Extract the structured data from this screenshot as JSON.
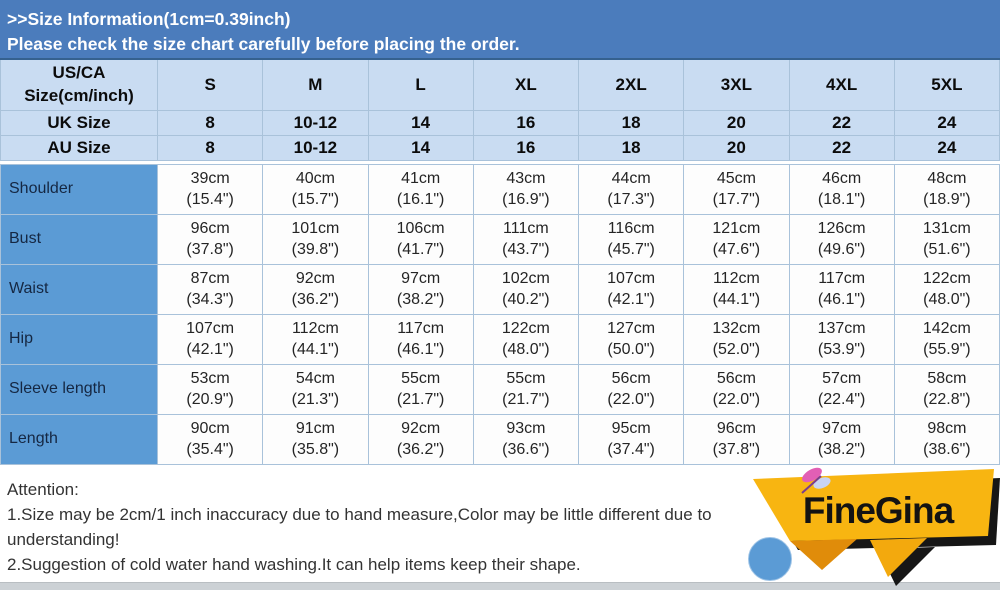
{
  "colors": {
    "band_blue": "#4b7cbc",
    "header_light_blue": "#c9dcf2",
    "label_blue": "#5b9bd5",
    "table_border": "#a9c2da",
    "ribbon_yellow": "#f8b511",
    "ribbon_orange": "#e08c0a",
    "circle_blue": "#5b9bd5"
  },
  "top_banner": {
    "line1": ">>Size Information(1cm=0.39inch)",
    "line2": "Please check the size chart carefully before placing the order."
  },
  "table": {
    "corner_label_lines": [
      "US/CA",
      "Size(cm/inch)"
    ],
    "size_columns": [
      "S",
      "M",
      "L",
      "XL",
      "2XL",
      "3XL",
      "4XL",
      "5XL"
    ],
    "header_rows": [
      {
        "label": "UK Size",
        "values": [
          "8",
          "10-12",
          "14",
          "16",
          "18",
          "20",
          "22",
          "24"
        ]
      },
      {
        "label": "AU Size",
        "values": [
          "8",
          "10-12",
          "14",
          "16",
          "18",
          "20",
          "22",
          "24"
        ]
      }
    ],
    "measurement_rows": [
      {
        "label": "Shoulder",
        "cm": [
          "39cm",
          "40cm",
          "41cm",
          "43cm",
          "44cm",
          "45cm",
          "46cm",
          "48cm"
        ],
        "inch": [
          "(15.4\")",
          "(15.7\")",
          "(16.1\")",
          "(16.9\")",
          "(17.3\")",
          "(17.7\")",
          "(18.1\")",
          "(18.9\")"
        ]
      },
      {
        "label": "Bust",
        "cm": [
          "96cm",
          "101cm",
          "106cm",
          "111cm",
          "116cm",
          "121cm",
          "126cm",
          "131cm"
        ],
        "inch": [
          "(37.8\")",
          "(39.8\")",
          "(41.7\")",
          "(43.7\")",
          "(45.7\")",
          "(47.6\")",
          "(49.6\")",
          "(51.6\")"
        ]
      },
      {
        "label": "Waist",
        "cm": [
          "87cm",
          "92cm",
          "97cm",
          "102cm",
          "107cm",
          "112cm",
          "117cm",
          "122cm"
        ],
        "inch": [
          "(34.3\")",
          "(36.2\")",
          "(38.2\")",
          "(40.2\")",
          "(42.1\")",
          "(44.1\")",
          "(46.1\")",
          "(48.0\")"
        ]
      },
      {
        "label": "Hip",
        "cm": [
          "107cm",
          "112cm",
          "117cm",
          "122cm",
          "127cm",
          "132cm",
          "137cm",
          "142cm"
        ],
        "inch": [
          "(42.1\")",
          "(44.1\")",
          "(46.1\")",
          "(48.0\")",
          "(50.0\")",
          "(52.0\")",
          "(53.9\")",
          "(55.9\")"
        ]
      },
      {
        "label": "Sleeve length",
        "cm": [
          "53cm",
          "54cm",
          "55cm",
          "55cm",
          "56cm",
          "56cm",
          "57cm",
          "58cm"
        ],
        "inch": [
          "(20.9\")",
          "(21.3\")",
          "(21.7\")",
          "(21.7\")",
          "(22.0\")",
          "(22.0\")",
          "(22.4\")",
          "(22.8\")"
        ]
      },
      {
        "label": "Length",
        "cm": [
          "90cm",
          "91cm",
          "92cm",
          "93cm",
          "95cm",
          "96cm",
          "97cm",
          "98cm"
        ],
        "inch": [
          "(35.4\")",
          "(35.8\")",
          "(36.2\")",
          "(36.6\")",
          "(37.4\")",
          "(37.8\")",
          "(38.2\")",
          "(38.6\")"
        ]
      }
    ]
  },
  "attention": {
    "title": "Attention:",
    "line1": "1.Size may be 2cm/1 inch inaccuracy due to hand measure,Color may be little different due to",
    "line2": "understanding!",
    "line3": "2.Suggestion of cold water hand washing.It can help items keep their shape."
  },
  "logo": {
    "brand": "FineGina"
  }
}
